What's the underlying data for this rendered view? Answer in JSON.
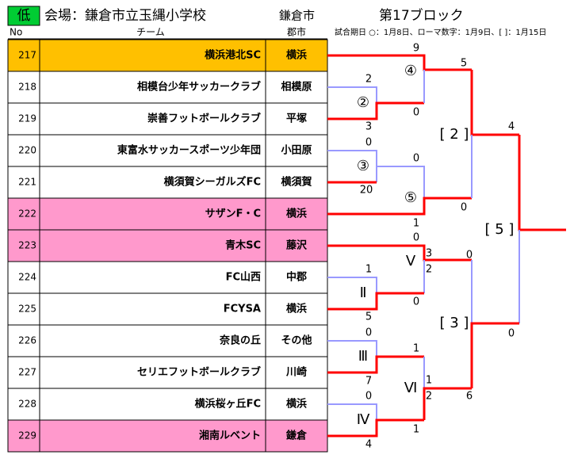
{
  "header": {
    "badge": "低",
    "venue": "会場：鎌倉市立玉縄小学校",
    "city": "鎌倉市",
    "block": "第17ブロック"
  },
  "table": {
    "columns": [
      "No",
      "チーム",
      "郡市"
    ],
    "note": "試合期日 ○：1月8日、ローマ数字：1月9日、[ ]：1月15日",
    "rows": [
      {
        "no": 217,
        "team": "横浜港北SC",
        "city": "横浜",
        "color": "#ffc000"
      },
      {
        "no": 218,
        "team": "相模台少年サッカークラブ",
        "city": "相模原",
        "color": "#ffffff"
      },
      {
        "no": 219,
        "team": "崇善フットボールクラブ",
        "city": "平塚",
        "color": "#ffffff"
      },
      {
        "no": 220,
        "team": "東富水サッカースポーツ少年団",
        "city": "小田原",
        "color": "#ffffff"
      },
      {
        "no": 221,
        "team": "横須賀シーガルズFC",
        "city": "横須賀",
        "color": "#ffffff"
      },
      {
        "no": 222,
        "team": "サザンF・C",
        "city": "横浜",
        "color": "#ff99cc"
      },
      {
        "no": 223,
        "team": "青木SC",
        "city": "藤沢",
        "color": "#ff99cc"
      },
      {
        "no": 224,
        "team": "FC山西",
        "city": "中郡",
        "color": "#ffffff"
      },
      {
        "no": 225,
        "team": "FCYSA",
        "city": "横浜",
        "color": "#ffffff"
      },
      {
        "no": 226,
        "team": "奈良の丘",
        "city": "その他",
        "color": "#ffffff"
      },
      {
        "no": 227,
        "team": "セリエフットボールクラブ",
        "city": "川崎",
        "color": "#ffffff"
      },
      {
        "no": 228,
        "team": "横浜桜ヶ丘FC",
        "city": "横浜",
        "color": "#ffffff"
      },
      {
        "no": 229,
        "team": "湘南ルベント",
        "city": "鎌倉",
        "color": "#ff99cc"
      }
    ]
  },
  "bracket": {
    "matches": [
      {
        "label": "②",
        "scores": [
          2,
          3
        ]
      },
      {
        "label": "③",
        "scores": [
          0,
          20
        ]
      },
      {
        "label": "④",
        "scores": [
          9,
          0
        ]
      },
      {
        "label": "⑤",
        "scores": [
          0,
          1
        ]
      },
      {
        "label": "[ 2 ]",
        "scores": [
          5,
          0
        ]
      },
      {
        "label": "Ⅱ",
        "scores": [
          1,
          5
        ]
      },
      {
        "label": "Ⅲ",
        "scores": [
          0,
          7
        ]
      },
      {
        "label": "Ⅳ",
        "scores": [
          0,
          4
        ]
      },
      {
        "label": "Ⅴ",
        "scores": [
          0,
          0
        ],
        "pk": [
          3,
          2
        ]
      },
      {
        "label": "Ⅵ",
        "scores": [
          1,
          1
        ],
        "pk": [
          1,
          2
        ]
      },
      {
        "label": "[ 3 ]",
        "scores": [
          0,
          6
        ]
      },
      {
        "label": "[ 5 ]",
        "scores": [
          4,
          0
        ]
      }
    ]
  }
}
